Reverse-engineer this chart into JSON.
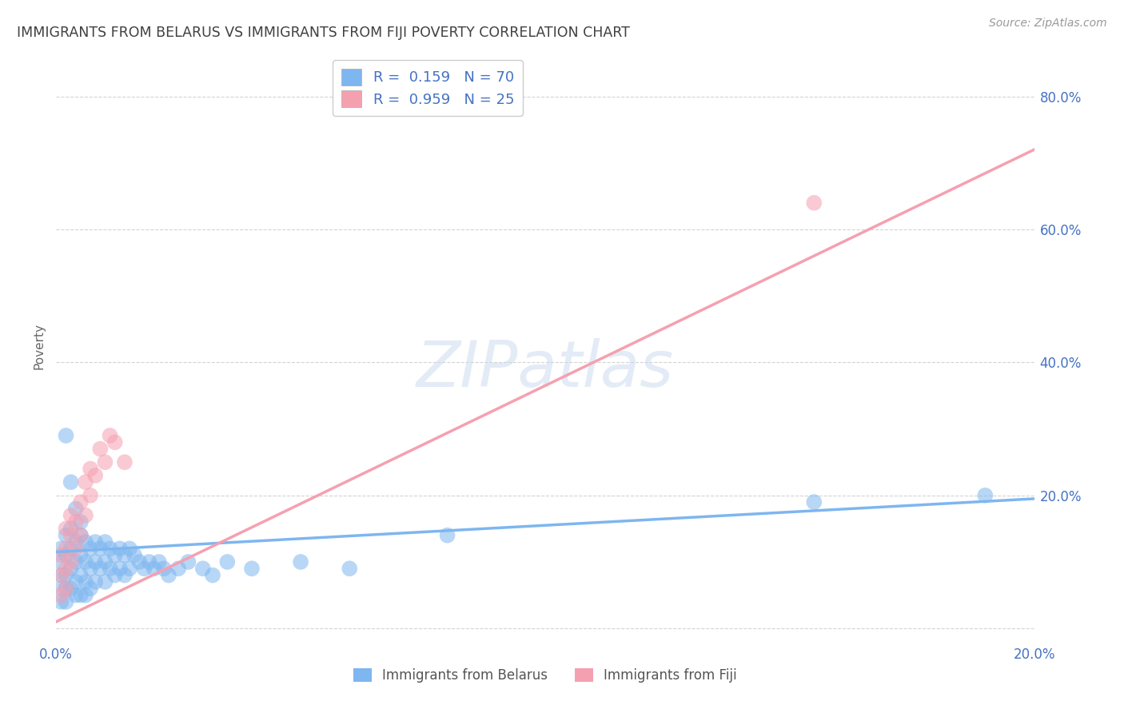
{
  "title": "IMMIGRANTS FROM BELARUS VS IMMIGRANTS FROM FIJI POVERTY CORRELATION CHART",
  "source": "Source: ZipAtlas.com",
  "ylabel": "Poverty",
  "xlim": [
    0.0,
    0.2
  ],
  "ylim": [
    -0.02,
    0.87
  ],
  "x_ticks": [
    0.0,
    0.05,
    0.1,
    0.15,
    0.2
  ],
  "x_tick_labels": [
    "0.0%",
    "",
    "",
    "",
    "20.0%"
  ],
  "y_ticks": [
    0.0,
    0.2,
    0.4,
    0.6,
    0.8
  ],
  "y_tick_labels": [
    "",
    "20.0%",
    "40.0%",
    "60.0%",
    "80.0%"
  ],
  "belarus_color": "#7EB6F0",
  "fiji_color": "#F5A0B0",
  "belarus_trend": [
    0.0,
    0.2,
    0.115,
    0.195
  ],
  "fiji_trend": [
    0.0,
    0.2,
    0.01,
    0.72
  ],
  "belarus_R": "0.159",
  "belarus_N": "70",
  "fiji_R": "0.959",
  "fiji_N": "25",
  "watermark": "ZIPatlas",
  "background_color": "#FFFFFF",
  "grid_color": "#C8C8C8",
  "title_color": "#404040",
  "axis_label_color": "#666666",
  "tick_label_color": "#4472C4",
  "source_color": "#999999",
  "belarus_pts_x": [
    0.001,
    0.001,
    0.001,
    0.001,
    0.001,
    0.002,
    0.002,
    0.002,
    0.002,
    0.002,
    0.003,
    0.003,
    0.003,
    0.003,
    0.004,
    0.004,
    0.004,
    0.004,
    0.005,
    0.005,
    0.005,
    0.005,
    0.006,
    0.006,
    0.006,
    0.007,
    0.007,
    0.007,
    0.008,
    0.008,
    0.008,
    0.009,
    0.009,
    0.01,
    0.01,
    0.01,
    0.011,
    0.011,
    0.012,
    0.012,
    0.013,
    0.013,
    0.014,
    0.014,
    0.015,
    0.015,
    0.016,
    0.017,
    0.018,
    0.019,
    0.02,
    0.021,
    0.022,
    0.023,
    0.025,
    0.027,
    0.03,
    0.032,
    0.035,
    0.04,
    0.002,
    0.003,
    0.004,
    0.005,
    0.006,
    0.05,
    0.06,
    0.08,
    0.155,
    0.19
  ],
  "belarus_pts_y": [
    0.12,
    0.1,
    0.08,
    0.06,
    0.04,
    0.14,
    0.11,
    0.08,
    0.06,
    0.04,
    0.15,
    0.12,
    0.09,
    0.06,
    0.13,
    0.1,
    0.07,
    0.05,
    0.14,
    0.11,
    0.08,
    0.05,
    0.13,
    0.1,
    0.07,
    0.12,
    0.09,
    0.06,
    0.13,
    0.1,
    0.07,
    0.12,
    0.09,
    0.13,
    0.1,
    0.07,
    0.12,
    0.09,
    0.11,
    0.08,
    0.12,
    0.09,
    0.11,
    0.08,
    0.12,
    0.09,
    0.11,
    0.1,
    0.09,
    0.1,
    0.09,
    0.1,
    0.09,
    0.08,
    0.09,
    0.1,
    0.09,
    0.08,
    0.1,
    0.09,
    0.29,
    0.22,
    0.18,
    0.16,
    0.05,
    0.1,
    0.09,
    0.14,
    0.19,
    0.2
  ],
  "fiji_pts_x": [
    0.001,
    0.001,
    0.001,
    0.002,
    0.002,
    0.002,
    0.002,
    0.003,
    0.003,
    0.003,
    0.004,
    0.004,
    0.005,
    0.005,
    0.006,
    0.006,
    0.007,
    0.007,
    0.008,
    0.009,
    0.01,
    0.011,
    0.012,
    0.014,
    0.155
  ],
  "fiji_pts_y": [
    0.05,
    0.08,
    0.11,
    0.06,
    0.09,
    0.12,
    0.15,
    0.1,
    0.14,
    0.17,
    0.12,
    0.16,
    0.14,
    0.19,
    0.17,
    0.22,
    0.2,
    0.24,
    0.23,
    0.27,
    0.25,
    0.29,
    0.28,
    0.25,
    0.64
  ]
}
